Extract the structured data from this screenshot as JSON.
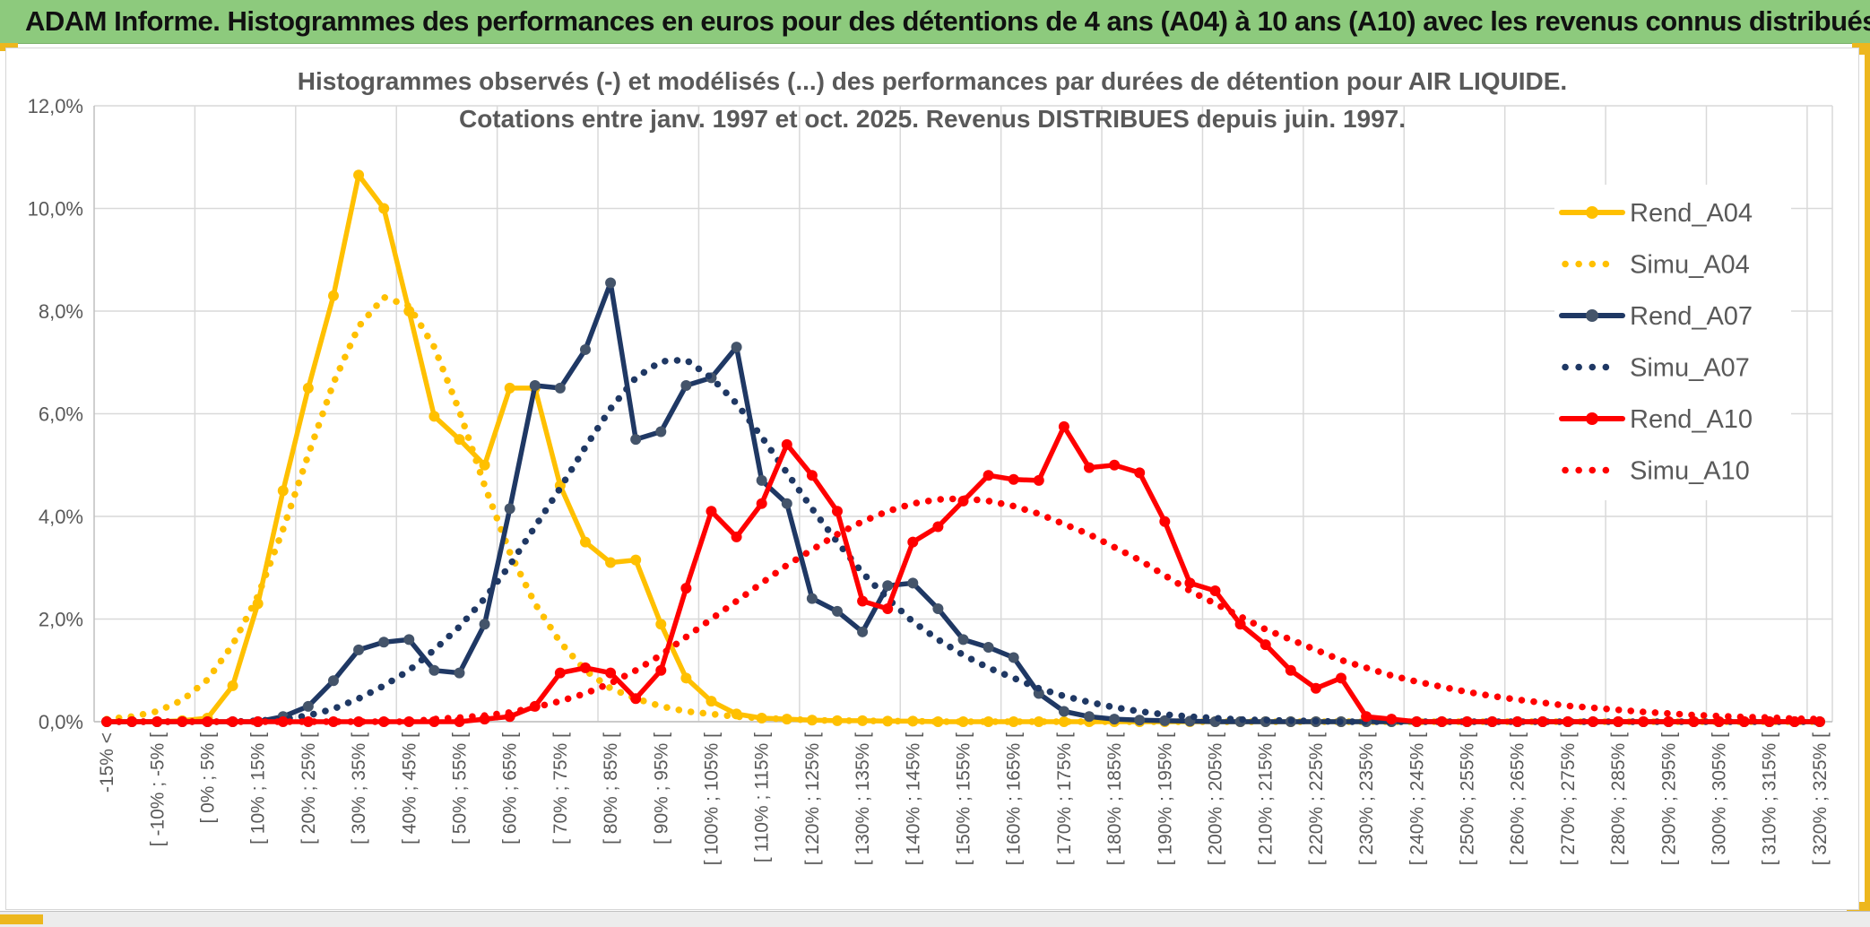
{
  "header": {
    "title": "ADAM Informe. Histogrammes des performances en euros pour des détentions de 4 ans (A04) à 10 ans (A10) avec les revenus connus distribués",
    "bg_color": "#8DCA7D"
  },
  "accent_colors": {
    "gold": "#EDB71E",
    "bottom_bar_bg": "#ECECEC"
  },
  "chart_data": {
    "type": "line",
    "title_line1": "Histogrammes observés (-) et modélisés (...) des performances par durées de détention pour AIR LIQUIDE.",
    "title_line2": "Cotations entre janv. 1997 et oct. 2025. Revenus DISTRIBUES depuis juin. 1997.",
    "title_color": "#595959",
    "axis_label_color": "#595959",
    "gridline_color": "#D9D9D9",
    "axis_line_color": "#BFBFBF",
    "grid": true,
    "legend_position": "right-top",
    "ylim": [
      0,
      12
    ],
    "y_ticks": [
      "0,0%",
      "2,0%",
      "4,0%",
      "6,0%",
      "8,0%",
      "10,0%",
      "12,0%"
    ],
    "x_label_every": 2,
    "n_bins": 69,
    "x_labels": [
      "-15% <",
      "[ -10% ; -5% [",
      "[ 0% ; 5% [",
      "[ 10% ; 15% [",
      "[ 20% ; 25% [",
      "[ 30% ; 35% [",
      "[ 40% ; 45% [",
      "[ 50% ; 55% [",
      "[ 60% ; 65% [",
      "[ 70% ; 75% [",
      "[ 80% ; 85% [",
      "[ 90% ; 95% [",
      "[ 100% ; 105% [",
      "[ 110% ; 115% [",
      "[ 120% ; 125% [",
      "[ 130% ; 135% [",
      "[ 140% ; 145% [",
      "[ 150% ; 155% [",
      "[ 160% ; 165% [",
      "[ 170% ; 175% [",
      "[ 180% ; 185% [",
      "[ 190% ; 195% [",
      "[ 200% ; 205% [",
      "[ 210% ; 215% [",
      "[ 220% ; 225% [",
      "[ 230% ; 235% [",
      "[ 240% ; 245% [",
      "[ 250% ; 255% [",
      "[ 260% ; 265% [",
      "[ 270% ; 275% [",
      "[ 280% ; 285% [",
      "[ 290% ; 295% [",
      "[ 300% ; 305% [",
      "[ 310% ; 315% [",
      "[ 320% ; 325% ["
    ],
    "series": [
      {
        "name": "Rend_A04",
        "style": "solid",
        "color": "#FFC000",
        "marker_color": "#FFC000",
        "values": [
          0,
          0,
          0,
          0.02,
          0.07,
          0.7,
          2.3,
          4.5,
          6.5,
          8.3,
          10.65,
          10,
          8,
          5.95,
          5.5,
          5,
          6.5,
          6.5,
          4.6,
          3.5,
          3.1,
          3.15,
          1.9,
          0.85,
          0.4,
          0.15,
          0.07,
          0.05,
          0.03,
          0.02,
          0.02,
          0.01,
          0.01,
          0,
          0,
          0,
          0,
          0,
          0,
          0,
          0,
          0,
          0,
          0,
          0,
          0,
          0,
          0,
          0,
          0,
          0,
          0,
          0,
          0,
          0,
          0,
          0,
          0,
          0,
          0,
          0,
          0,
          0,
          0,
          0,
          0,
          0,
          0,
          0
        ]
      },
      {
        "name": "Simu_A04",
        "style": "dotted",
        "color": "#FFC000",
        "values": [
          0.05,
          0.1,
          0.2,
          0.42,
          0.82,
          1.5,
          2.45,
          3.75,
          5.2,
          6.6,
          7.7,
          8.27,
          8.1,
          7.3,
          6.05,
          4.6,
          3.3,
          2.3,
          1.55,
          1,
          0.65,
          0.45,
          0.3,
          0.2,
          0.15,
          0.1,
          0.07,
          0.05,
          0.03,
          0.02,
          0.02,
          0.01,
          0.01,
          0,
          0,
          0,
          0,
          0,
          0,
          0,
          0,
          0,
          0,
          0,
          0,
          0,
          0,
          0,
          0,
          0,
          0,
          0,
          0,
          0,
          0,
          0,
          0,
          0,
          0,
          0,
          0,
          0,
          0,
          0,
          0,
          0,
          0,
          0,
          0
        ]
      },
      {
        "name": "Rend_A07",
        "style": "solid",
        "color": "#1F3864",
        "marker_color": "#44546A",
        "values": [
          0,
          0,
          0,
          0,
          0,
          0,
          0,
          0.1,
          0.3,
          0.8,
          1.4,
          1.55,
          1.6,
          1,
          0.95,
          1.9,
          4.15,
          6.55,
          6.5,
          7.25,
          8.55,
          5.5,
          5.65,
          6.55,
          6.7,
          7.3,
          4.7,
          4.25,
          2.4,
          2.15,
          1.75,
          2.65,
          2.7,
          2.2,
          1.6,
          1.45,
          1.25,
          0.55,
          0.2,
          0.1,
          0.05,
          0.03,
          0.02,
          0.01,
          0,
          0,
          0,
          0,
          0,
          0,
          0,
          0,
          0,
          0,
          0,
          0,
          0,
          0,
          0,
          0,
          0,
          0,
          0,
          0,
          0,
          0,
          0,
          0,
          0
        ]
      },
      {
        "name": "Simu_A07",
        "style": "dotted",
        "color": "#1F3864",
        "values": [
          0,
          0,
          0,
          0,
          0,
          0,
          0.02,
          0.05,
          0.12,
          0.25,
          0.45,
          0.7,
          1,
          1.4,
          1.85,
          2.4,
          3.05,
          3.8,
          4.55,
          5.35,
          6.1,
          6.7,
          7.02,
          7.05,
          6.7,
          6.2,
          5.55,
          4.85,
          4.15,
          3.5,
          2.9,
          2.4,
          1.95,
          1.6,
          1.3,
          1.05,
          0.85,
          0.65,
          0.5,
          0.38,
          0.28,
          0.2,
          0.14,
          0.1,
          0.07,
          0.04,
          0.03,
          0.02,
          0.01,
          0,
          0,
          0,
          0,
          0,
          0,
          0,
          0,
          0,
          0,
          0,
          0,
          0,
          0,
          0,
          0,
          0,
          0,
          0,
          0
        ]
      },
      {
        "name": "Rend_A10",
        "style": "solid",
        "color": "#FF0000",
        "marker_color": "#FF0000",
        "values": [
          0,
          0,
          0,
          0,
          0,
          0,
          0,
          0,
          0,
          0,
          0,
          0,
          0,
          0,
          0,
          0.05,
          0.1,
          0.3,
          0.95,
          1.05,
          0.95,
          0.45,
          1,
          2.6,
          4.1,
          3.6,
          4.25,
          5.4,
          4.8,
          4.1,
          2.35,
          2.2,
          3.5,
          3.8,
          4.3,
          4.8,
          4.72,
          4.7,
          5.75,
          4.95,
          5,
          4.85,
          3.9,
          2.7,
          2.55,
          1.9,
          1.5,
          1,
          0.65,
          0.85,
          0.1,
          0.05,
          0,
          0,
          0,
          0,
          0,
          0,
          0,
          0,
          0,
          0,
          0,
          0,
          0,
          0,
          0,
          0,
          0
        ]
      },
      {
        "name": "Simu_A10",
        "style": "dotted",
        "color": "#FF0000",
        "values": [
          0,
          0,
          0,
          0,
          0,
          0,
          0,
          0,
          0,
          0,
          0,
          0,
          0,
          0.05,
          0.08,
          0.12,
          0.18,
          0.28,
          0.4,
          0.55,
          0.75,
          1,
          1.3,
          1.65,
          2,
          2.35,
          2.7,
          3.05,
          3.35,
          3.65,
          3.9,
          4.1,
          4.25,
          4.33,
          4.35,
          4.3,
          4.2,
          4.05,
          3.85,
          3.65,
          3.4,
          3.15,
          2.85,
          2.55,
          2.3,
          2.05,
          1.8,
          1.6,
          1.4,
          1.2,
          1.05,
          0.9,
          0.78,
          0.68,
          0.58,
          0.5,
          0.43,
          0.37,
          0.31,
          0.27,
          0.23,
          0.19,
          0.16,
          0.13,
          0.11,
          0.09,
          0.08,
          0.06,
          0.05
        ]
      }
    ]
  }
}
